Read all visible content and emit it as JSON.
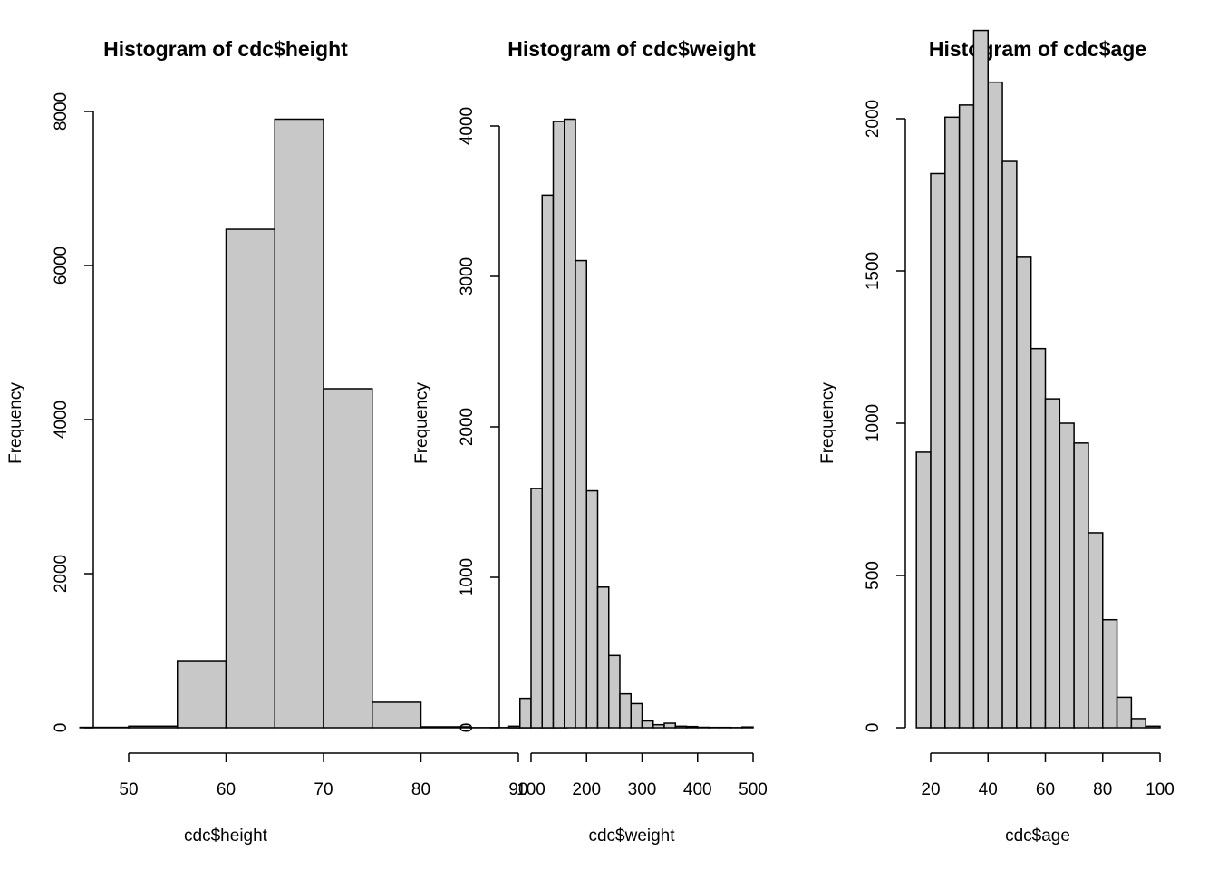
{
  "style": {
    "bar_fill": "#c8c8c8",
    "bar_stroke": "#000000",
    "background": "#ffffff"
  },
  "chart_data": [
    {
      "type": "bar",
      "title": "Histogram of cdc$height",
      "xlabel": "cdc$height",
      "ylabel": "Frequency",
      "bins": [
        [
          45,
          50
        ],
        [
          50,
          55
        ],
        [
          55,
          60
        ],
        [
          60,
          65
        ],
        [
          65,
          70
        ],
        [
          70,
          75
        ],
        [
          75,
          80
        ],
        [
          80,
          85
        ],
        [
          85,
          90
        ],
        [
          90,
          95
        ]
      ],
      "values": [
        5,
        20,
        870,
        6470,
        7900,
        4400,
        330,
        12,
        2,
        1
      ],
      "xlim": [
        45,
        95
      ],
      "ylim": [
        0,
        8000
      ],
      "x_ticks": [
        50,
        60,
        70,
        80,
        90
      ],
      "y_ticks": [
        0,
        2000,
        4000,
        6000,
        8000
      ],
      "grid": false
    },
    {
      "type": "bar",
      "title": "Histogram of cdc$weight",
      "xlabel": "cdc$weight",
      "ylabel": "Frequency",
      "bins": [
        [
          60,
          80
        ],
        [
          80,
          100
        ],
        [
          100,
          120
        ],
        [
          120,
          140
        ],
        [
          140,
          160
        ],
        [
          160,
          180
        ],
        [
          180,
          200
        ],
        [
          200,
          220
        ],
        [
          220,
          240
        ],
        [
          240,
          260
        ],
        [
          260,
          280
        ],
        [
          280,
          300
        ],
        [
          300,
          320
        ],
        [
          320,
          340
        ],
        [
          340,
          360
        ],
        [
          360,
          380
        ],
        [
          380,
          400
        ],
        [
          400,
          420
        ],
        [
          420,
          440
        ],
        [
          440,
          460
        ],
        [
          460,
          480
        ],
        [
          480,
          500
        ]
      ],
      "values": [
        10,
        195,
        1590,
        3540,
        4030,
        4045,
        3105,
        1575,
        935,
        480,
        225,
        160,
        45,
        20,
        30,
        10,
        8,
        3,
        2,
        2,
        1,
        5
      ],
      "xlim": [
        60,
        500
      ],
      "ylim": [
        0,
        4000
      ],
      "x_ticks": [
        100,
        200,
        300,
        400,
        500
      ],
      "y_ticks": [
        0,
        1000,
        2000,
        3000,
        4000
      ],
      "grid": false
    },
    {
      "type": "bar",
      "title": "Histogram of cdc$age",
      "xlabel": "cdc$age",
      "ylabel": "Frequency",
      "bins": [
        [
          15,
          20
        ],
        [
          20,
          25
        ],
        [
          25,
          30
        ],
        [
          30,
          35
        ],
        [
          35,
          40
        ],
        [
          40,
          45
        ],
        [
          45,
          50
        ],
        [
          50,
          55
        ],
        [
          55,
          60
        ],
        [
          60,
          65
        ],
        [
          65,
          70
        ],
        [
          70,
          75
        ],
        [
          75,
          80
        ],
        [
          80,
          85
        ],
        [
          85,
          90
        ],
        [
          90,
          95
        ],
        [
          95,
          100
        ]
      ],
      "values": [
        905,
        1820,
        2005,
        2045,
        2290,
        2120,
        1860,
        1545,
        1245,
        1080,
        1000,
        935,
        640,
        355,
        100,
        30,
        5
      ],
      "xlim": [
        15,
        100
      ],
      "ylim": [
        0,
        2290
      ],
      "x_ticks": [
        20,
        40,
        60,
        80,
        100
      ],
      "y_ticks": [
        0,
        500,
        1000,
        1500,
        2000
      ],
      "grid": false
    }
  ]
}
